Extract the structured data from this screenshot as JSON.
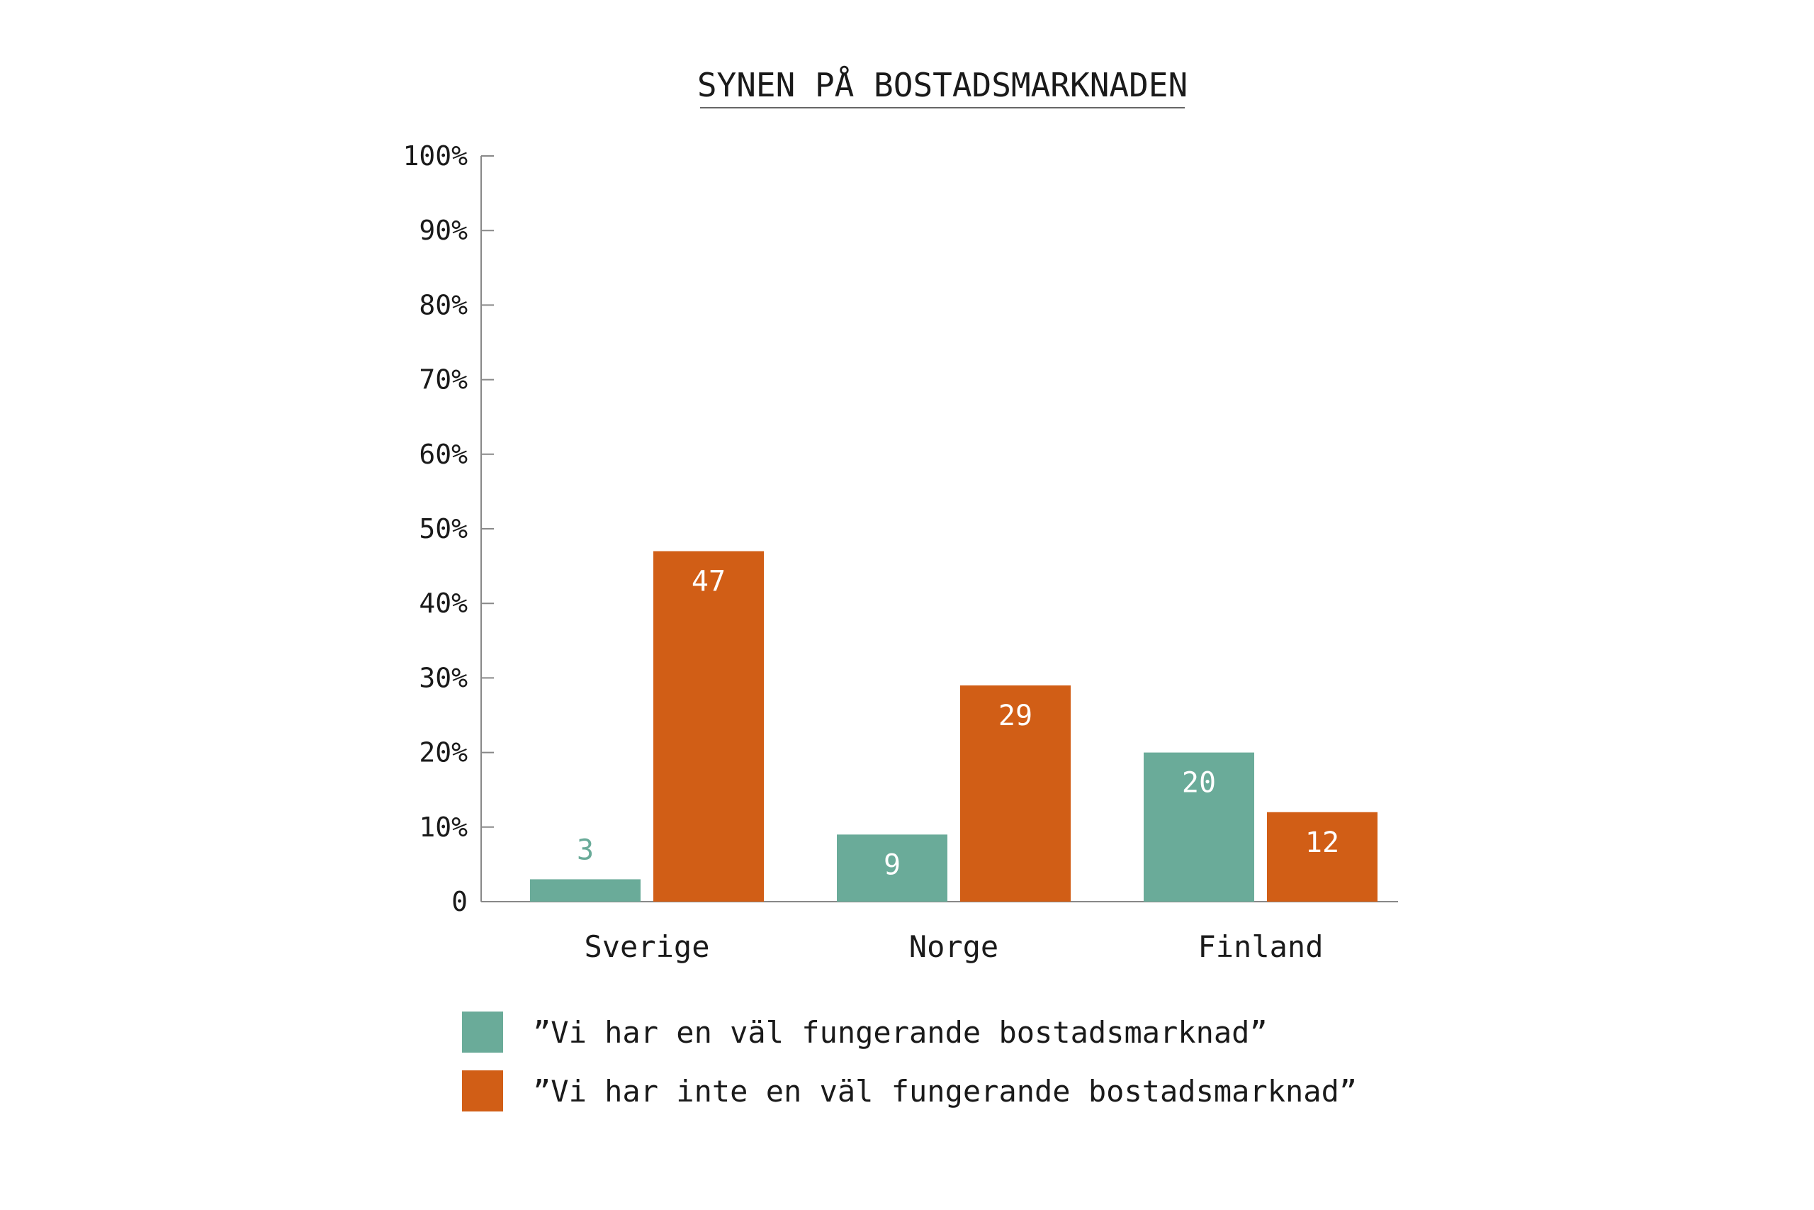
{
  "chart_data": {
    "type": "bar",
    "title": "SYNEN PÅ BOSTADSMARKNADEN",
    "xlabel": "",
    "ylabel": "",
    "categories": [
      "Sverige",
      "Norge",
      "Finland"
    ],
    "series": [
      {
        "name": "”Vi har en väl fungerande bostadsmarknad”",
        "color": "#6aab99",
        "values": [
          3,
          9,
          20
        ],
        "labels": [
          "3",
          "9",
          "20"
        ]
      },
      {
        "name": "”Vi har inte en väl fungerande bostadsmarknad”",
        "color": "#d15e16",
        "values": [
          47,
          29,
          12
        ],
        "labels": [
          "47",
          "29",
          "12"
        ]
      }
    ],
    "ylim": [
      0,
      100
    ],
    "yticks": [
      0,
      10,
      20,
      30,
      40,
      50,
      60,
      70,
      80,
      90,
      100
    ],
    "ytick_labels": [
      "0",
      "10%",
      "20%",
      "30%",
      "40%",
      "50%",
      "60%",
      "70%",
      "80%",
      "90%",
      "100%"
    ],
    "grid": false,
    "legend_position": "bottom"
  }
}
